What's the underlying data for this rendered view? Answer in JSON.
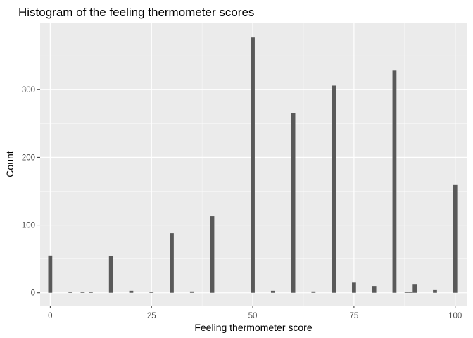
{
  "chart_data": {
    "type": "bar",
    "title": "Histogram of the feeling thermometer scores",
    "xlabel": "Feeling thermometer score",
    "ylabel": "Count",
    "xlim": [
      -2.5,
      103
    ],
    "ylim": [
      -19,
      398
    ],
    "x_ticks": [
      0,
      25,
      50,
      75,
      100
    ],
    "y_ticks": [
      0,
      100,
      200,
      300
    ],
    "x_minor": [
      12.5,
      37.5,
      62.5,
      87.5
    ],
    "y_minor": [
      50,
      150,
      250,
      350
    ],
    "grid": true,
    "bin_width": 1,
    "series": [
      {
        "x": [
          0,
          5,
          8,
          10,
          15,
          20,
          25,
          30,
          35,
          40,
          50,
          55,
          60,
          65,
          70,
          75,
          80,
          85,
          88,
          89,
          90,
          95,
          100
        ],
        "values": [
          55,
          1,
          1,
          1,
          54,
          3,
          1,
          88,
          2,
          113,
          377,
          3,
          265,
          2,
          306,
          15,
          10,
          328,
          1,
          1,
          12,
          4,
          159
        ]
      }
    ],
    "colors": {
      "panel": "#ebebeb",
      "grid_major": "#ffffff",
      "bar": "#595959",
      "tick": "#333333"
    }
  }
}
